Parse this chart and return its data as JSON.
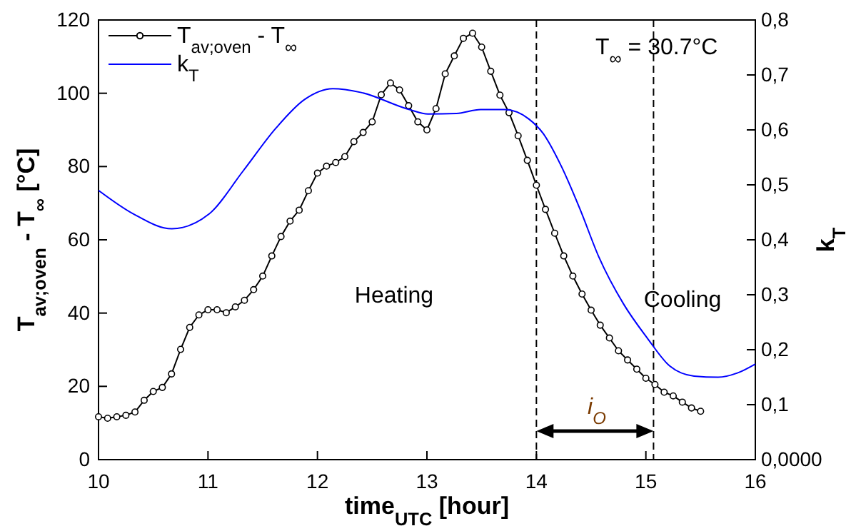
{
  "chart_data": {
    "type": "line",
    "xlabel": "time$_{UTC}$  [hour]",
    "ylabel": "T$_{av;oven}$ - T$_{∞}$  [°C]",
    "y2label": "k$_{T}$",
    "xlim": [
      10,
      16
    ],
    "xticks": [
      10,
      11,
      12,
      13,
      14,
      15,
      16
    ],
    "ylim": [
      0,
      120
    ],
    "yticks": [
      0,
      20,
      40,
      60,
      80,
      100,
      120
    ],
    "y2lim": [
      0,
      0.8
    ],
    "y2ticks": [
      {
        "value": 0,
        "label": "0,0000"
      },
      {
        "value": 0.1,
        "label": "0,1"
      },
      {
        "value": 0.2,
        "label": "0,2"
      },
      {
        "value": 0.3,
        "label": "0,3"
      },
      {
        "value": 0.4,
        "label": "0,4"
      },
      {
        "value": 0.5,
        "label": "0,5"
      },
      {
        "value": 0.6,
        "label": "0,6"
      },
      {
        "value": 0.7,
        "label": "0,7"
      },
      {
        "value": 0.8,
        "label": "0,8"
      }
    ],
    "grid": false,
    "legend": "top left",
    "series": [
      {
        "name": "T$_{av;oven}$ - T$_{∞}$",
        "color": "#000000",
        "marker": "circle",
        "x": [
          10.0,
          10.083,
          10.167,
          10.25,
          10.333,
          10.417,
          10.5,
          10.583,
          10.667,
          10.75,
          10.833,
          10.917,
          11.0,
          11.083,
          11.167,
          11.25,
          11.333,
          11.417,
          11.5,
          11.583,
          11.667,
          11.75,
          11.833,
          11.917,
          12.0,
          12.083,
          12.167,
          12.25,
          12.333,
          12.417,
          12.5,
          12.583,
          12.667,
          12.75,
          12.833,
          12.917,
          13.0,
          13.083,
          13.167,
          13.25,
          13.333,
          13.417,
          13.5,
          13.583,
          13.667,
          13.75,
          13.833,
          13.917,
          14.0,
          14.083,
          14.167,
          14.25,
          14.333,
          14.417,
          14.5,
          14.583,
          14.667,
          14.75,
          14.833,
          14.917,
          15.0,
          15.083,
          15.167,
          15.25,
          15.333,
          15.417,
          15.5
        ],
        "values": [
          11.7,
          11.3,
          11.7,
          12.1,
          13.0,
          16.2,
          18.6,
          19.7,
          23.4,
          30.1,
          36.1,
          39.5,
          40.9,
          40.9,
          40.1,
          41.7,
          43.5,
          46.4,
          50.1,
          55.6,
          60.9,
          65.1,
          68.1,
          73.4,
          78.2,
          80.1,
          81.1,
          82.7,
          86.8,
          89.3,
          92.2,
          99.6,
          102.8,
          100.9,
          96.6,
          92.2,
          90.0,
          95.8,
          105.3,
          110.2,
          115.0,
          116.4,
          112.6,
          106.0,
          99.5,
          94.7,
          88.4,
          81.7,
          74.9,
          68.3,
          61.8,
          55.6,
          50.1,
          45.2,
          40.8,
          36.7,
          33.2,
          29.7,
          27.2,
          24.7,
          22.2,
          20.5,
          18.4,
          17.4,
          15.7,
          14.1,
          13.2
        ]
      },
      {
        "name": "k$_{T}$",
        "color": "#0000ff",
        "axis": "y2",
        "marker": "none",
        "x": [
          10.0,
          10.32,
          10.67,
          11.01,
          11.32,
          11.62,
          11.88,
          12.14,
          12.4,
          12.84,
          13.01,
          13.27,
          13.49,
          13.71,
          13.93,
          14.06,
          14.23,
          14.4,
          14.57,
          14.8,
          15.01,
          15.22,
          15.44,
          15.66,
          15.84,
          16.0
        ],
        "values": [
          0.49,
          0.447,
          0.42,
          0.447,
          0.525,
          0.603,
          0.655,
          0.675,
          0.668,
          0.637,
          0.629,
          0.63,
          0.637,
          0.637,
          0.62,
          0.594,
          0.533,
          0.455,
          0.369,
          0.282,
          0.222,
          0.17,
          0.152,
          0.15,
          0.158,
          0.174
        ]
      }
    ],
    "ref_lines": [
      {
        "axis": "x",
        "value": 14,
        "line_style": "dashed",
        "color": "#000000"
      },
      {
        "axis": "x",
        "value": 15.07,
        "line_style": "dashed",
        "color": "#000000"
      }
    ],
    "annotations": [
      "T$_{∞}$ = 30.7°C",
      "Heating",
      "Cooling",
      "i$_{O}$"
    ]
  }
}
